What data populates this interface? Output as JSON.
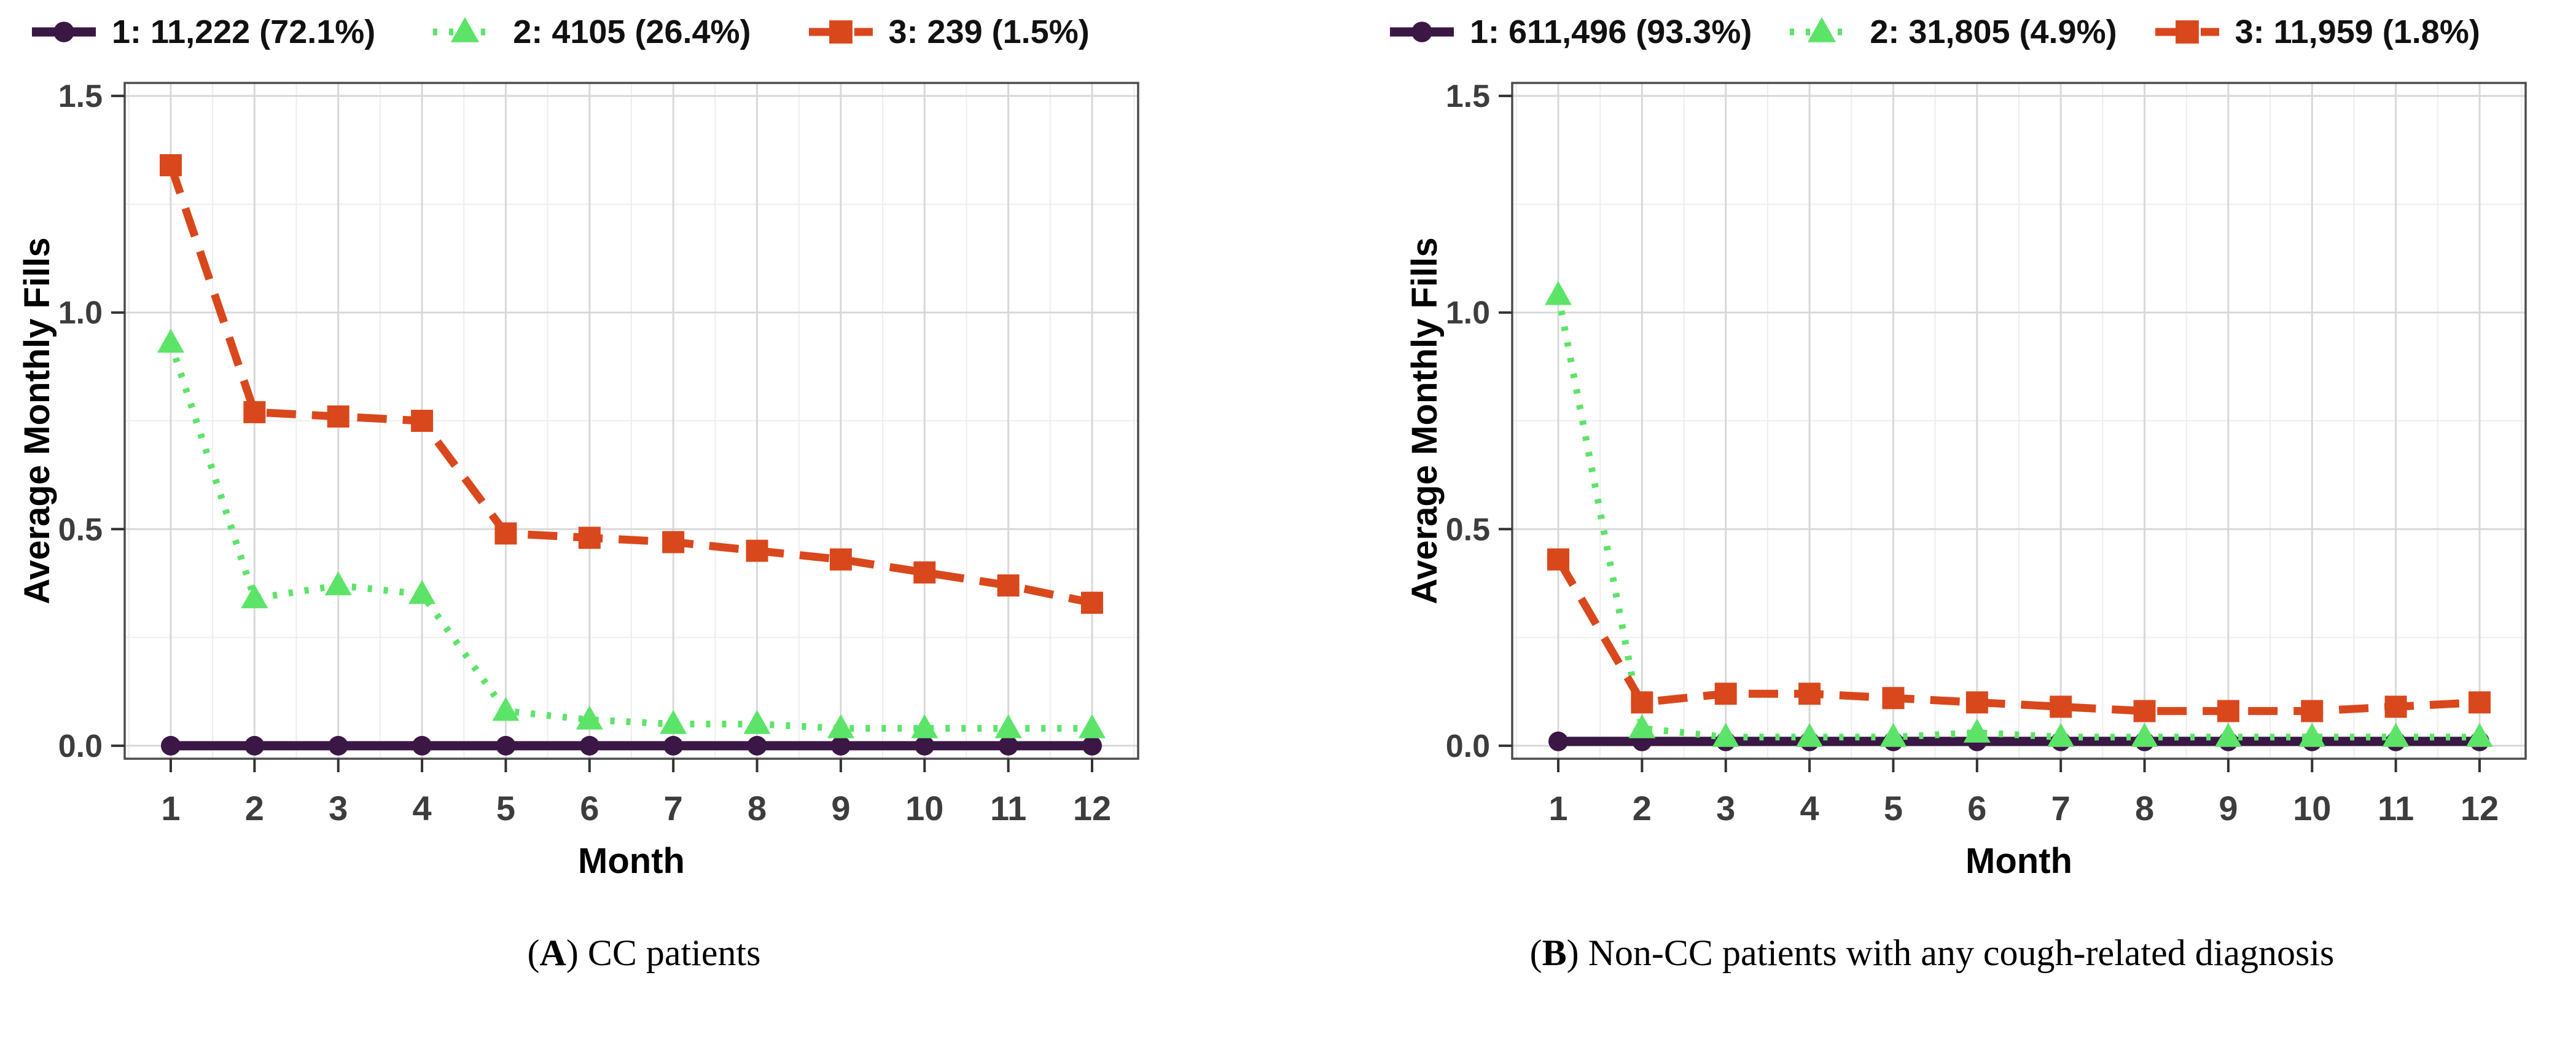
{
  "ylabel_shared": "Average Monthly Fills",
  "xlabel_shared": "Month",
  "captions": [
    {
      "open": "(",
      "letter": "A",
      "rest": ") CC patients"
    },
    {
      "open": "(",
      "letter": "B",
      "rest": ") Non-CC patients with any cough-related diagnosis"
    }
  ],
  "colors": {
    "trajectory1_purple": "#3b1745",
    "trajectory2_green": "#5ce468",
    "trajectory3_orange": "#d9481c",
    "tick_label_gray": "#3d3d3d",
    "axis_border_gray": "#4d4d4d",
    "grid_major": "#d8d8d8",
    "grid_minor": "#ededed"
  },
  "chart_data": [
    {
      "type": "line",
      "title": "",
      "caption": "CC patients",
      "xlabel": "Month",
      "ylabel": "Average Monthly Fills",
      "x": [
        1,
        2,
        3,
        4,
        5,
        6,
        7,
        8,
        9,
        10,
        11,
        12
      ],
      "xticks": [
        1,
        2,
        3,
        4,
        5,
        6,
        7,
        8,
        9,
        10,
        11,
        12
      ],
      "yticks": [
        0.0,
        0.5,
        1.0,
        1.5
      ],
      "ytick_labels": [
        "0.0",
        "0.5",
        "1.0",
        "1.5"
      ],
      "ylim": [
        0,
        1.5
      ],
      "grid": true,
      "legend_position": "top",
      "series": [
        {
          "name": "1: 11,222 (72.1%)",
          "color": "#3b1745",
          "marker": "circle",
          "linestyle": "solid",
          "values": [
            0.0,
            0.0,
            0.0,
            0.0,
            0.0,
            0.0,
            0.0,
            0.0,
            0.0,
            0.0,
            0.0,
            0.0
          ]
        },
        {
          "name": "2: 4105 (26.4%)",
          "color": "#5ce468",
          "marker": "triangle",
          "linestyle": "dotted",
          "values": [
            0.93,
            0.34,
            0.37,
            0.35,
            0.08,
            0.06,
            0.05,
            0.05,
            0.04,
            0.04,
            0.04,
            0.04
          ]
        },
        {
          "name": "3: 239 (1.5%)",
          "color": "#d9481c",
          "marker": "square",
          "linestyle": "dashed",
          "values": [
            1.34,
            0.77,
            0.76,
            0.75,
            0.49,
            0.48,
            0.47,
            0.45,
            0.43,
            0.4,
            0.37,
            0.33
          ]
        }
      ]
    },
    {
      "type": "line",
      "title": "",
      "caption": "Non-CC patients with any cough-related diagnosis",
      "xlabel": "Month",
      "ylabel": "Average Monthly Fills",
      "x": [
        1,
        2,
        3,
        4,
        5,
        6,
        7,
        8,
        9,
        10,
        11,
        12
      ],
      "xticks": [
        1,
        2,
        3,
        4,
        5,
        6,
        7,
        8,
        9,
        10,
        11,
        12
      ],
      "yticks": [
        0.0,
        0.5,
        1.0,
        1.5
      ],
      "ytick_labels": [
        "0.0",
        "0.5",
        "1.0",
        "1.5"
      ],
      "ylim": [
        0,
        1.5
      ],
      "grid": true,
      "legend_position": "top",
      "series": [
        {
          "name": "1: 611,496 (93.3%)",
          "color": "#3b1745",
          "marker": "circle",
          "linestyle": "solid",
          "values": [
            0.01,
            0.01,
            0.01,
            0.01,
            0.01,
            0.01,
            0.01,
            0.01,
            0.01,
            0.01,
            0.01,
            0.01
          ]
        },
        {
          "name": "2: 31,805 (4.9%)",
          "color": "#5ce468",
          "marker": "triangle",
          "linestyle": "dotted",
          "values": [
            1.04,
            0.04,
            0.02,
            0.02,
            0.02,
            0.03,
            0.02,
            0.02,
            0.02,
            0.02,
            0.02,
            0.02
          ]
        },
        {
          "name": "3: 11,959 (1.8%)",
          "color": "#d9481c",
          "marker": "square",
          "linestyle": "dashed",
          "values": [
            0.43,
            0.1,
            0.12,
            0.12,
            0.11,
            0.1,
            0.09,
            0.08,
            0.08,
            0.08,
            0.09,
            0.1
          ]
        }
      ]
    }
  ]
}
